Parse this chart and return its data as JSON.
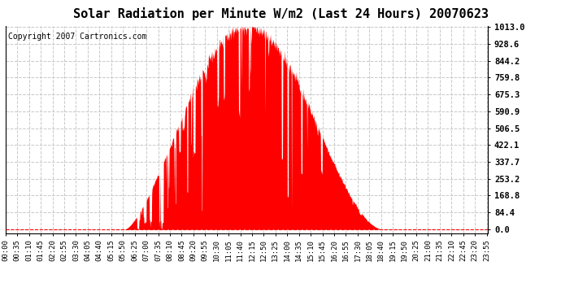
{
  "title": "Solar Radiation per Minute W/m2 (Last 24 Hours) 20070623",
  "copyright_text": "Copyright 2007 Cartronics.com",
  "y_ticks": [
    0.0,
    84.4,
    168.8,
    253.2,
    337.7,
    422.1,
    506.5,
    590.9,
    675.3,
    759.8,
    844.2,
    928.6,
    1013.0
  ],
  "y_max": 1013.0,
  "y_min": 0.0,
  "fill_color": "#FF0000",
  "background_color": "#FFFFFF",
  "plot_bg_color": "#FFFFFF",
  "grid_color": "#C8C8C8",
  "title_fontsize": 11,
  "copyright_fontsize": 7,
  "x_tick_fontsize": 6.5,
  "y_tick_fontsize": 7.5,
  "sunrise_min": 355,
  "sunset_min": 1125,
  "peak_min": 720,
  "peak_val": 1013.0,
  "x_tick_step": 35,
  "total_minutes": 1440
}
